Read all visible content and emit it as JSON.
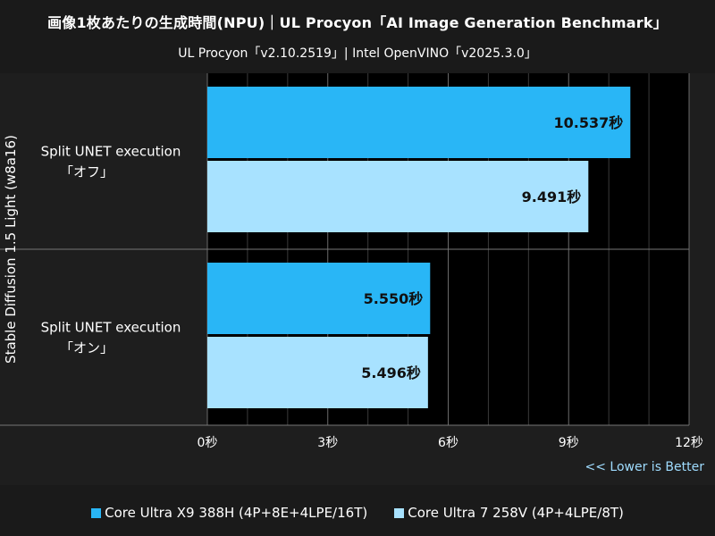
{
  "title": "画像1枚あたりの生成時間(NPU)｜UL Procyon「AI Image Generation Benchmark」",
  "subtitle": "UL Procyon「v2.10.2519」| Intel OpenVINO「v2025.3.0」",
  "note": "<< Lower is Better",
  "colors": {
    "background": "#000000",
    "plot_background": "#000000",
    "panel": "#1e1e1e",
    "series1": "#29b6f6",
    "series2": "#a8e2ff",
    "text": "#ffffff",
    "note": "#9fdcff"
  },
  "legend": [
    {
      "label": "Core Ultra X9 388H (4P+8E+4LPE/16T)",
      "color": "#29b6f6"
    },
    {
      "label": "Core Ultra 7 258V (4P+4LPE/8T)",
      "color": "#a8e2ff"
    }
  ],
  "chart_data": {
    "type": "bar",
    "orientation": "horizontal",
    "ylabel": "Stable Diffusion 1.5 Light (w8a16)",
    "xlabel": "",
    "xlim": [
      0,
      12
    ],
    "x_ticks": [
      "0秒",
      "3秒",
      "6秒",
      "9秒",
      "12秒"
    ],
    "grid": true,
    "categories": [
      {
        "line1": "Split UNET execution",
        "line2": "「オフ」"
      },
      {
        "line1": "Split UNET execution",
        "line2": "「オン」"
      }
    ],
    "series": [
      {
        "name": "Core Ultra X9 388H (4P+8E+4LPE/16T)",
        "values": [
          10.537,
          5.55
        ],
        "labels": [
          "10.537秒",
          "5.550秒"
        ]
      },
      {
        "name": "Core Ultra 7 258V (4P+4LPE/8T)",
        "values": [
          9.491,
          5.496
        ],
        "labels": [
          "9.491秒",
          "5.496秒"
        ]
      }
    ]
  }
}
